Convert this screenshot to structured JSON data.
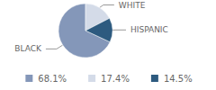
{
  "chart_data": {
    "type": "pie",
    "categories": [
      "BLACK",
      "WHITE",
      "HISPANIC"
    ],
    "values": [
      68.1,
      17.4,
      14.5
    ],
    "value_labels": [
      "68.1%",
      "17.4%",
      "14.5%"
    ],
    "colors": [
      "#8497b9",
      "#d4dbe8",
      "#2d5a7f"
    ],
    "legend": "bottom"
  }
}
